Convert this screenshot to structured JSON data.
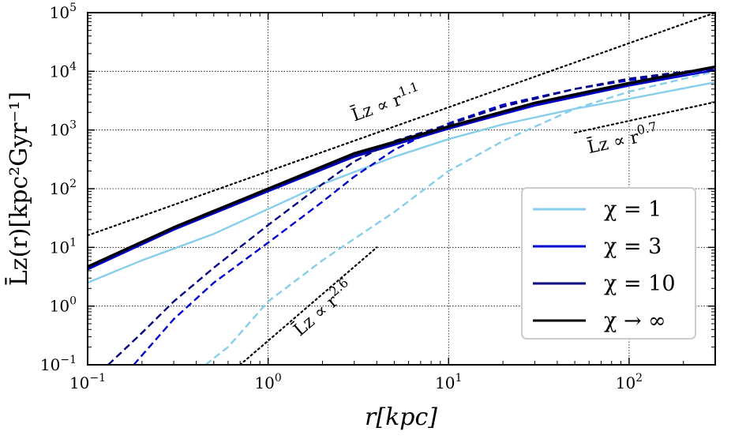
{
  "chart_data": {
    "type": "line",
    "xscale": "log",
    "yscale": "log",
    "xlim": [
      0.1,
      300
    ],
    "ylim": [
      0.1,
      100000
    ],
    "grid": true,
    "xlabel": "r[kpc]",
    "ylabel": "L̄z(r)[kpc²Gyr⁻¹]",
    "x_ticks": [
      {
        "value": 0.1,
        "base": "10",
        "exp": "−1"
      },
      {
        "value": 1,
        "base": "10",
        "exp": "0"
      },
      {
        "value": 10,
        "base": "10",
        "exp": "1"
      },
      {
        "value": 100,
        "base": "10",
        "exp": "2"
      }
    ],
    "y_ticks": [
      {
        "value": 0.1,
        "base": "10",
        "exp": "−1"
      },
      {
        "value": 1,
        "base": "10",
        "exp": "0"
      },
      {
        "value": 10,
        "base": "10",
        "exp": "1"
      },
      {
        "value": 100,
        "base": "10",
        "exp": "2"
      },
      {
        "value": 1000,
        "base": "10",
        "exp": "3"
      },
      {
        "value": 10000,
        "base": "10",
        "exp": "4"
      },
      {
        "value": 100000,
        "base": "10",
        "exp": "5"
      }
    ],
    "legend": {
      "location": "lower-right",
      "entries": [
        {
          "label": "χ = 1",
          "color": "#87ceeb",
          "style": "solid"
        },
        {
          "label": "χ = 3",
          "color": "#0000cd",
          "style": "solid"
        },
        {
          "label": "χ = 10",
          "color": "#000080",
          "style": "solid"
        },
        {
          "label": "χ → ∞",
          "color": "#000000",
          "style": "solid"
        }
      ]
    },
    "series": [
      {
        "name": "χ = 1 (total)",
        "color": "#87ceeb",
        "style": "solid",
        "x": [
          0.1,
          0.13,
          0.2,
          0.3,
          0.5,
          1,
          2,
          5,
          10,
          20,
          50,
          100,
          300
        ],
        "y": [
          2.5,
          3.5,
          6,
          9.5,
          17,
          45,
          120,
          350,
          700,
          1250,
          2300,
          3400,
          6500
        ]
      },
      {
        "name": "χ = 1 (dashed)",
        "color": "#87ceeb",
        "style": "dashed",
        "x": [
          0.45,
          0.6,
          0.8,
          1,
          2,
          3,
          5,
          10,
          20,
          50,
          100,
          300
        ],
        "y": [
          0.1,
          0.2,
          0.55,
          1.2,
          6,
          14,
          40,
          200,
          650,
          2300,
          4500,
          10000
        ]
      },
      {
        "name": "χ = 3 (total)",
        "color": "#0000cd",
        "style": "solid",
        "x": [
          0.1,
          0.3,
          1,
          3,
          10,
          30,
          100,
          300
        ],
        "y": [
          4.2,
          20,
          90,
          350,
          1050,
          2600,
          5700,
          10500
        ]
      },
      {
        "name": "χ = 3 (dashed)",
        "color": "#0000cd",
        "style": "dashed",
        "x": [
          0.18,
          0.3,
          0.5,
          1,
          2,
          3,
          5,
          10,
          20,
          50,
          100,
          300
        ],
        "y": [
          0.1,
          0.6,
          2.5,
          12,
          60,
          160,
          460,
          1300,
          2700,
          5000,
          7000,
          11000
        ]
      },
      {
        "name": "χ = 10 (total)",
        "color": "#000080",
        "style": "solid",
        "x": [
          0.1,
          0.3,
          1,
          3,
          10,
          30,
          100,
          300
        ],
        "y": [
          4.5,
          21,
          95,
          370,
          1100,
          2800,
          6000,
          11500
        ]
      },
      {
        "name": "χ = 10 (dashed)",
        "color": "#000080",
        "style": "dashed",
        "x": [
          0.13,
          0.2,
          0.3,
          0.5,
          1,
          2,
          3,
          5,
          10,
          20,
          50,
          100,
          300
        ],
        "y": [
          0.1,
          0.35,
          1.2,
          4.5,
          24,
          120,
          290,
          650,
          1250,
          2500,
          5000,
          7500,
          11500
        ]
      },
      {
        "name": "χ → ∞",
        "color": "#000000",
        "style": "solid",
        "x": [
          0.1,
          0.3,
          1,
          3,
          10,
          30,
          100,
          300
        ],
        "y": [
          4.7,
          22,
          100,
          400,
          1150,
          2900,
          6300,
          12000
        ]
      }
    ],
    "reference_lines": [
      {
        "label_base": "L̄z ∝ r",
        "label_exp": "1.1",
        "slope": 1.1,
        "x": [
          0.1,
          300
        ],
        "y": [
          16,
          100000
        ]
      },
      {
        "label_base": "L̄z ∝ r",
        "label_exp": "0.7",
        "slope": 0.7,
        "x": [
          50,
          300
        ],
        "y": [
          900,
          3000
        ]
      },
      {
        "label_base": "L̄z ∝ r",
        "label_exp": "2.6",
        "slope": 2.6,
        "x": [
          0.7,
          4
        ],
        "y": [
          0.1,
          10
        ]
      }
    ]
  }
}
